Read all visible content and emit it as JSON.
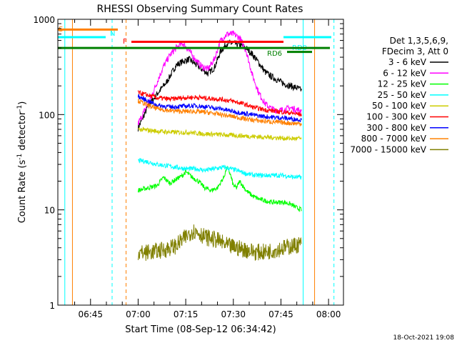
{
  "chart_data": {
    "type": "line",
    "title": "RHESSI Observing Summary Count Rates",
    "xlabel": "Start Time (08-Sep-12 06:34:42)",
    "ylabel_main": "Count Rate (s",
    "ylabel_sup1": "-1",
    "ylabel_mid": " detector",
    "ylabel_sup2": "-1",
    "ylabel_end": ")",
    "yscale": "log",
    "ylim": [
      1,
      1000
    ],
    "xlim_min": [
      34.7,
      124.7
    ],
    "x_ticks": [
      {
        "min": 45,
        "label": "06:45"
      },
      {
        "min": 60,
        "label": "07:00"
      },
      {
        "min": 75,
        "label": "07:15"
      },
      {
        "min": 90,
        "label": "07:30"
      },
      {
        "min": 105,
        "label": "07:45"
      },
      {
        "min": 120,
        "label": "08:00"
      }
    ],
    "y_ticks": [
      {
        "value": 1,
        "label": "1"
      },
      {
        "value": 10,
        "label": "10"
      },
      {
        "value": 100,
        "label": "100"
      },
      {
        "value": 1000,
        "label": "1000"
      }
    ],
    "legend_header": [
      "Det 1,3,5,6,9,",
      "FDecim 3, Att 0"
    ],
    "series": [
      {
        "name": "3 - 6 keV",
        "color": "#000000",
        "points": [
          [
            60,
            72
          ],
          [
            63,
            120
          ],
          [
            66,
            165
          ],
          [
            69,
            220
          ],
          [
            72,
            330
          ],
          [
            74,
            360
          ],
          [
            76,
            380
          ],
          [
            78,
            340
          ],
          [
            80,
            300
          ],
          [
            82,
            270
          ],
          [
            84,
            310
          ],
          [
            86,
            460
          ],
          [
            88,
            560
          ],
          [
            90,
            560
          ],
          [
            92,
            540
          ],
          [
            94,
            500
          ],
          [
            96,
            430
          ],
          [
            98,
            350
          ],
          [
            100,
            280
          ],
          [
            102,
            250
          ],
          [
            104,
            230
          ],
          [
            106,
            210
          ],
          [
            108,
            200
          ],
          [
            110,
            190
          ],
          [
            111.5,
            180
          ]
        ]
      },
      {
        "name": "6 - 12 keV",
        "color": "#ff00ff",
        "points": [
          [
            60,
            80
          ],
          [
            62,
            110
          ],
          [
            64,
            150
          ],
          [
            66,
            220
          ],
          [
            68,
            320
          ],
          [
            70,
            420
          ],
          [
            72,
            500
          ],
          [
            74,
            560
          ],
          [
            76,
            470
          ],
          [
            78,
            380
          ],
          [
            80,
            320
          ],
          [
            82,
            300
          ],
          [
            84,
            380
          ],
          [
            86,
            600
          ],
          [
            88,
            700
          ],
          [
            90,
            700
          ],
          [
            92,
            640
          ],
          [
            94,
            470
          ],
          [
            96,
            260
          ],
          [
            98,
            170
          ],
          [
            100,
            130
          ],
          [
            102,
            115
          ],
          [
            104,
            110
          ],
          [
            106,
            112
          ],
          [
            108,
            118
          ],
          [
            110,
            112
          ],
          [
            111.5,
            110
          ]
        ]
      },
      {
        "name": "12 - 25 keV",
        "color": "#00ff00",
        "points": [
          [
            60,
            16
          ],
          [
            63,
            17
          ],
          [
            66,
            18
          ],
          [
            68,
            22
          ],
          [
            70,
            19
          ],
          [
            72,
            21
          ],
          [
            74,
            23
          ],
          [
            75,
            25
          ],
          [
            77,
            22
          ],
          [
            79,
            20
          ],
          [
            81,
            17
          ],
          [
            83,
            16
          ],
          [
            85,
            17
          ],
          [
            87,
            22
          ],
          [
            88,
            28
          ],
          [
            89,
            24
          ],
          [
            90,
            18
          ],
          [
            91,
            17
          ],
          [
            92,
            20
          ],
          [
            94,
            16
          ],
          [
            96,
            14
          ],
          [
            98,
            13
          ],
          [
            100,
            12.5
          ],
          [
            102,
            12
          ],
          [
            104,
            12
          ],
          [
            106,
            12
          ],
          [
            108,
            11.5
          ],
          [
            110,
            10.5
          ],
          [
            111.5,
            10
          ]
        ]
      },
      {
        "name": "25 - 50 keV",
        "color": "#00ffff",
        "points": [
          [
            60,
            33
          ],
          [
            63,
            32
          ],
          [
            66,
            30
          ],
          [
            69,
            29
          ],
          [
            72,
            28
          ],
          [
            75,
            27
          ],
          [
            78,
            27
          ],
          [
            81,
            26
          ],
          [
            84,
            27
          ],
          [
            87,
            28
          ],
          [
            89,
            27
          ],
          [
            91,
            26
          ],
          [
            94,
            24
          ],
          [
            97,
            23
          ],
          [
            100,
            23
          ],
          [
            103,
            23
          ],
          [
            106,
            23
          ],
          [
            109,
            22
          ],
          [
            111.5,
            22
          ]
        ]
      },
      {
        "name": "50 - 100 keV",
        "color": "#cccc00",
        "points": [
          [
            60,
            70
          ],
          [
            64,
            68
          ],
          [
            68,
            66
          ],
          [
            72,
            65
          ],
          [
            76,
            65
          ],
          [
            80,
            63
          ],
          [
            84,
            62
          ],
          [
            88,
            61
          ],
          [
            92,
            60
          ],
          [
            96,
            59
          ],
          [
            100,
            58
          ],
          [
            104,
            57
          ],
          [
            108,
            56
          ],
          [
            111.5,
            56
          ]
        ]
      },
      {
        "name": "100 - 300 keV",
        "color": "#ff0000",
        "points": [
          [
            60,
            170
          ],
          [
            63,
            160
          ],
          [
            66,
            150
          ],
          [
            70,
            145
          ],
          [
            74,
            150
          ],
          [
            78,
            152
          ],
          [
            82,
            148
          ],
          [
            86,
            145
          ],
          [
            90,
            138
          ],
          [
            93,
            130
          ],
          [
            96,
            120
          ],
          [
            100,
            112
          ],
          [
            104,
            108
          ],
          [
            108,
            104
          ],
          [
            111.5,
            100
          ]
        ]
      },
      {
        "name": "300 - 800 keV",
        "color": "#0000ff",
        "points": [
          [
            60,
            155
          ],
          [
            63,
            140
          ],
          [
            66,
            125
          ],
          [
            70,
            120
          ],
          [
            74,
            122
          ],
          [
            78,
            124
          ],
          [
            82,
            120
          ],
          [
            86,
            115
          ],
          [
            90,
            108
          ],
          [
            94,
            102
          ],
          [
            98,
            97
          ],
          [
            102,
            94
          ],
          [
            106,
            92
          ],
          [
            111.5,
            88
          ]
        ]
      },
      {
        "name": "800 - 7000 keV",
        "color": "#ff8000",
        "points": [
          [
            60,
            140
          ],
          [
            63,
            125
          ],
          [
            66,
            115
          ],
          [
            70,
            110
          ],
          [
            74,
            108
          ],
          [
            78,
            108
          ],
          [
            82,
            105
          ],
          [
            86,
            100
          ],
          [
            90,
            95
          ],
          [
            94,
            90
          ],
          [
            98,
            86
          ],
          [
            102,
            84
          ],
          [
            106,
            82
          ],
          [
            111.5,
            80
          ]
        ]
      },
      {
        "name": "7000 - 15000 keV",
        "color": "#808000",
        "points": [
          [
            60,
            3.5
          ],
          [
            64,
            3.6
          ],
          [
            68,
            3.8
          ],
          [
            72,
            4.2
          ],
          [
            75,
            5.2
          ],
          [
            77,
            6.0
          ],
          [
            79,
            5.8
          ],
          [
            81,
            5.2
          ],
          [
            83,
            5.0
          ],
          [
            85,
            4.8
          ],
          [
            88,
            4.2
          ],
          [
            91,
            4.0
          ],
          [
            94,
            3.8
          ],
          [
            97,
            3.6
          ],
          [
            100,
            3.6
          ],
          [
            103,
            3.8
          ],
          [
            106,
            4.0
          ],
          [
            109,
            4.2
          ],
          [
            111.5,
            4.4
          ]
        ]
      }
    ],
    "markers": [
      {
        "label": "S",
        "color": "#ff8000",
        "y": 780
      },
      {
        "label": "N",
        "color": "#00ffff",
        "y": 650
      },
      {
        "label": "F",
        "color": "#ff0000",
        "y": 580
      },
      {
        "label": "RD0",
        "color": "#00ffff",
        "y": 650
      },
      {
        "label": "RD6",
        "color": "#008000",
        "y": 455
      }
    ],
    "timestamp": "18-Oct-2021 19:08"
  }
}
